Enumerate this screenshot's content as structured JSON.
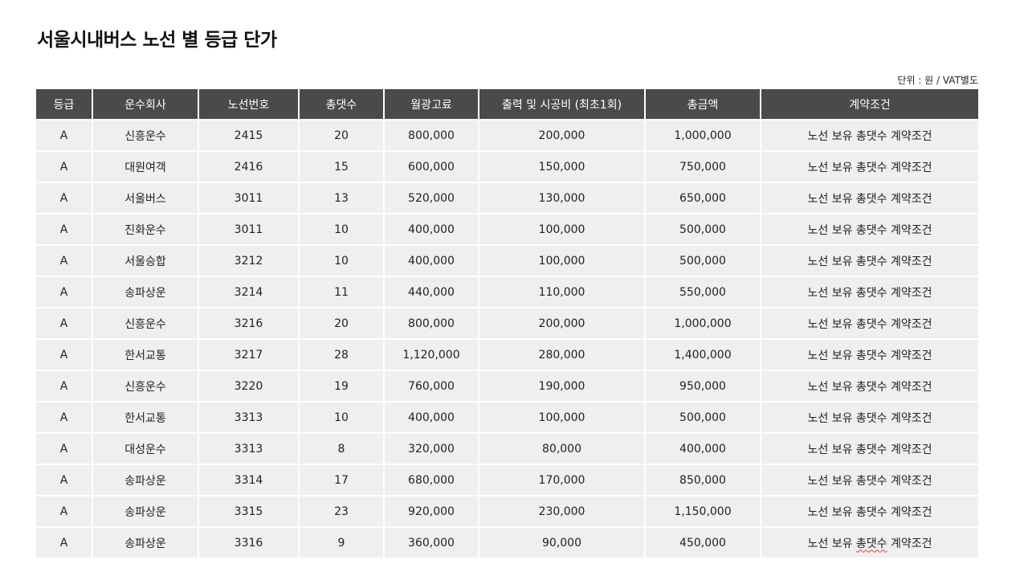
{
  "title": "서울시내버스 노선 별 등급 단가",
  "unit_note": "단위 : 원 / VAT별도",
  "table": {
    "headers": [
      "등급",
      "운수회사",
      "노선번호",
      "총댓수",
      "월광고료",
      "출력 및 시공비 (최초1회)",
      "총금액",
      "계약조건"
    ],
    "rows": [
      [
        "A",
        "신흥운수",
        "2415",
        "20",
        "800,000",
        "200,000",
        "1,000,000",
        "노선 보유 총댓수 계약조건"
      ],
      [
        "A",
        "대원여객",
        "2416",
        "15",
        "600,000",
        "150,000",
        "750,000",
        "노선 보유 총댓수 계약조건"
      ],
      [
        "A",
        "서울버스",
        "3011",
        "13",
        "520,000",
        "130,000",
        "650,000",
        "노선 보유 총댓수 계약조건"
      ],
      [
        "A",
        "진화운수",
        "3011",
        "10",
        "400,000",
        "100,000",
        "500,000",
        "노선 보유 총댓수 계약조건"
      ],
      [
        "A",
        "서울승합",
        "3212",
        "10",
        "400,000",
        "100,000",
        "500,000",
        "노선 보유 총댓수 계약조건"
      ],
      [
        "A",
        "송파상운",
        "3214",
        "11",
        "440,000",
        "110,000",
        "550,000",
        "노선 보유 총댓수 계약조건"
      ],
      [
        "A",
        "신흥운수",
        "3216",
        "20",
        "800,000",
        "200,000",
        "1,000,000",
        "노선 보유 총댓수 계약조건"
      ],
      [
        "A",
        "한서교통",
        "3217",
        "28",
        "1,120,000",
        "280,000",
        "1,400,000",
        "노선 보유 총댓수 계약조건"
      ],
      [
        "A",
        "신흥운수",
        "3220",
        "19",
        "760,000",
        "190,000",
        "950,000",
        "노선 보유 총댓수 계약조건"
      ],
      [
        "A",
        "한서교통",
        "3313",
        "10",
        "400,000",
        "100,000",
        "500,000",
        "노선 보유 총댓수 계약조건"
      ],
      [
        "A",
        "대성운수",
        "3313",
        "8",
        "320,000",
        "80,000",
        "400,000",
        "노선 보유 총댓수 계약조건"
      ],
      [
        "A",
        "송파상운",
        "3314",
        "17",
        "680,000",
        "170,000",
        "850,000",
        "노선 보유 총댓수 계약조건"
      ],
      [
        "A",
        "송파상운",
        "3315",
        "23",
        "920,000",
        "230,000",
        "1,150,000",
        "노선 보유 총댓수 계약조건"
      ],
      [
        "A",
        "송파상운",
        "3316",
        "9",
        "360,000",
        "90,000",
        "450,000",
        "노선 보유 총댓수 계약조건"
      ]
    ]
  },
  "colors": {
    "header_bg": "#4a4a4a",
    "row_bg": "#efefef",
    "spellcheck": "#e04040"
  }
}
